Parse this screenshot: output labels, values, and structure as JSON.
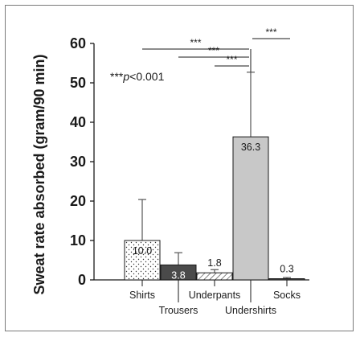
{
  "chart_data": {
    "type": "bar",
    "ylabel": "Sweat rate absorbed (gram/90 min)",
    "ylim": [
      0,
      60
    ],
    "yticks": [
      0,
      10,
      20,
      30,
      40,
      50,
      60
    ],
    "categories": [
      "Shirts",
      "Trousers",
      "Underpants",
      "Undershirts",
      "Socks"
    ],
    "values": [
      10.0,
      3.8,
      1.8,
      36.3,
      0.3
    ],
    "value_labels": [
      "10.0",
      "3.8",
      "1.8",
      "36.3",
      "0.3"
    ],
    "error_upper": [
      20.4,
      6.9,
      2.6,
      52.7,
      0.6
    ],
    "fills": [
      "dots",
      "#4a4a4a",
      "hatch",
      "#c8c8c8",
      "#4a4a4a"
    ],
    "significance": [
      {
        "from": "Shirts",
        "to": "Undershirts",
        "label": "***"
      },
      {
        "from": "Trousers",
        "to": "Undershirts",
        "label": "***"
      },
      {
        "from": "Underpants",
        "to": "Undershirts",
        "label": "***"
      },
      {
        "from": "Undershirts",
        "to": "Socks",
        "label": "***"
      }
    ],
    "annotation": {
      "prefix": "***",
      "italic": "p",
      "suffix": "<0.001"
    },
    "grid": false,
    "legend": "none"
  }
}
